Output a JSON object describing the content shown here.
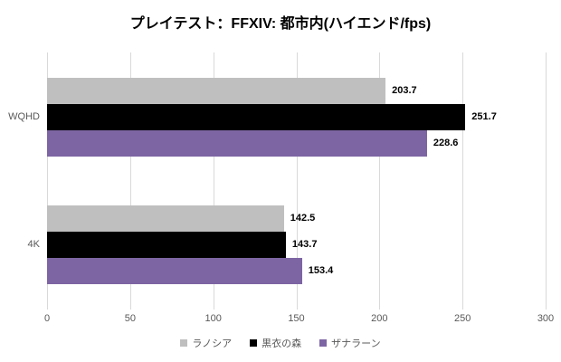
{
  "title": "プレイテスト：FFXIV: 都市内(ハイエンド/fps)",
  "chart_data": {
    "type": "bar",
    "orientation": "horizontal",
    "title": "プレイテスト：FFXIV: 都市内(ハイエンド/fps)",
    "categories": [
      "WQHD",
      "4K"
    ],
    "series": [
      {
        "name": "ラノシア",
        "color": "#BFBFBF",
        "values": [
          203.7,
          142.5
        ]
      },
      {
        "name": "黒衣の森",
        "color": "#000000",
        "values": [
          251.7,
          143.7
        ]
      },
      {
        "name": "ザナラーン",
        "color": "#7D65A3",
        "values": [
          228.6,
          153.4
        ]
      }
    ],
    "data_labels": [
      "203.7",
      "251.7",
      "228.6",
      "142.5",
      "143.7",
      "153.4"
    ],
    "xlabel": "",
    "ylabel": "",
    "xlim": [
      0,
      300
    ],
    "x_ticks": [
      "0",
      "50",
      "100",
      "150",
      "200",
      "250",
      "300"
    ],
    "grid": true,
    "legend_position": "bottom"
  },
  "colors": {
    "grid": "#D9D9D9",
    "axis_text": "#595959",
    "title_text": "#000000",
    "value_label_text": "#000000",
    "background": "#FFFFFF"
  }
}
